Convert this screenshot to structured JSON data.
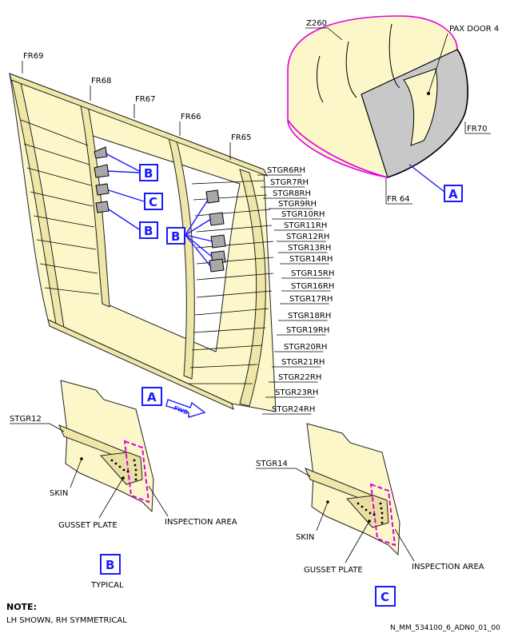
{
  "labels": {
    "fr69": "FR69",
    "fr68": "FR68",
    "fr67": "FR67",
    "fr66": "FR66",
    "fr65": "FR65",
    "z260": "Z260",
    "pax_door": "PAX DOOR 4",
    "fr70": "FR70",
    "fr64": "FR 64",
    "stringers": [
      "STGR6RH",
      "STGR7RH",
      "STGR8RH",
      "STGR9RH",
      "STGR10RH",
      "STGR11RH",
      "STGR12RH",
      "STGR13RH",
      "STGR14RH",
      "STGR15RH",
      "STGR16RH",
      "STGR17RH",
      "STGR18RH",
      "STGR19RH",
      "STGR20RH",
      "STGR21RH",
      "STGR22RH",
      "STGR23RH",
      "STGR24RH"
    ]
  },
  "callouts": {
    "a": "A",
    "b": "B",
    "c": "C",
    "fwd": "FWD"
  },
  "detail_b": {
    "stgr": "STGR12",
    "skin": "SKIN",
    "gusset": "GUSSET PLATE",
    "inspection": "INSPECTION AREA",
    "title": "B",
    "subtitle": "TYPICAL"
  },
  "detail_c": {
    "stgr": "STGR14",
    "skin": "SKIN",
    "gusset": "GUSSET PLATE",
    "inspection": "INSPECTION AREA",
    "title": "C"
  },
  "note": {
    "heading": "NOTE:",
    "text": "LH SHOWN, RH SYMMETRICAL"
  },
  "reference": "N_MM_534100_6_ADN0_01_00",
  "colors": {
    "callout_blue": "#1a1aff",
    "inspection_magenta": "#e000e0",
    "structure_fill": "#fbf7c8",
    "door_gray": "#c8c8c8"
  }
}
